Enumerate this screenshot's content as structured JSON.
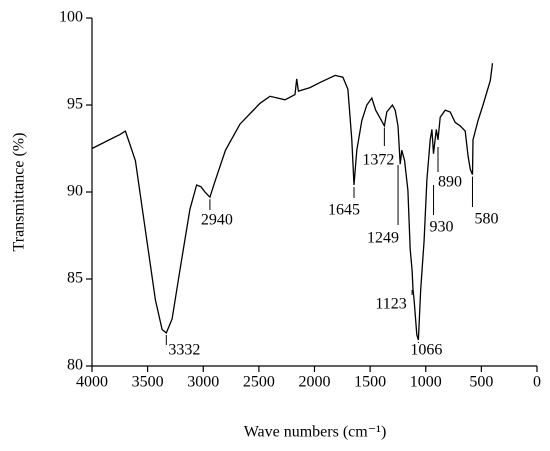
{
  "chart_data": {
    "type": "line",
    "xlabel": "Wave numbers (cm⁻¹)",
    "ylabel": "Transmittance (%)",
    "xlim": [
      4000,
      0
    ],
    "xticks": [
      4000,
      3500,
      3000,
      2500,
      2000,
      1500,
      1000,
      500,
      0
    ],
    "ylim": [
      80,
      100
    ],
    "yticks": [
      80,
      85,
      90,
      95,
      100
    ],
    "color": "#000000",
    "x": [
      4000,
      3750,
      3700,
      3610,
      3520,
      3430,
      3370,
      3332,
      3280,
      3210,
      3120,
      3060,
      3020,
      2985,
      2940,
      2890,
      2800,
      2670,
      2490,
      2400,
      2265,
      2175,
      2160,
      2145,
      2040,
      1950,
      1815,
      1745,
      1700,
      1665,
      1645,
      1620,
      1575,
      1530,
      1485,
      1450,
      1415,
      1372,
      1350,
      1300,
      1275,
      1249,
      1230,
      1215,
      1190,
      1160,
      1140,
      1123,
      1115,
      1105,
      1080,
      1066,
      1045,
      1015,
      990,
      960,
      945,
      930,
      905,
      890,
      870,
      825,
      780,
      735,
      690,
      645,
      620,
      600,
      580,
      575,
      530,
      485,
      420,
      400
    ],
    "values": [
      92.5,
      93.3,
      93.5,
      91.8,
      87.8,
      83.8,
      82.1,
      81.9,
      82.7,
      85.5,
      89.0,
      90.4,
      90.3,
      90.0,
      89.7,
      90.7,
      92.4,
      93.9,
      95.1,
      95.5,
      95.3,
      95.6,
      96.5,
      95.8,
      96.0,
      96.3,
      96.7,
      96.6,
      95.9,
      93.0,
      90.4,
      92.4,
      94.1,
      95.0,
      95.4,
      94.7,
      94.3,
      93.8,
      94.6,
      95.0,
      94.7,
      93.8,
      91.6,
      92.4,
      91.8,
      90.1,
      86.7,
      85.5,
      84.4,
      83.8,
      81.8,
      81.5,
      84.4,
      87.2,
      90.7,
      93.0,
      93.6,
      92.2,
      93.6,
      93.0,
      94.3,
      94.7,
      94.6,
      94.0,
      93.8,
      93.5,
      92.1,
      91.3,
      91.0,
      93.0,
      94.1,
      95.0,
      96.4,
      97.4
    ],
    "annotations": [
      {
        "text": "3332",
        "x": 3332,
        "y": 81.9
      },
      {
        "text": "2940",
        "x": 2940,
        "y": 89.7
      },
      {
        "text": "1645",
        "x": 1645,
        "y": 90.4
      },
      {
        "text": "1372",
        "x": 1372,
        "y": 93.8
      },
      {
        "text": "1249",
        "x": 1249,
        "y": 93.8
      },
      {
        "text": "1123",
        "x": 1123,
        "y": 85.5
      },
      {
        "text": "1066",
        "x": 1066,
        "y": 81.5
      },
      {
        "text": "930",
        "x": 930,
        "y": 92.2
      },
      {
        "text": "890",
        "x": 890,
        "y": 93.0
      },
      {
        "text": "580",
        "x": 580,
        "y": 91.0
      }
    ]
  }
}
